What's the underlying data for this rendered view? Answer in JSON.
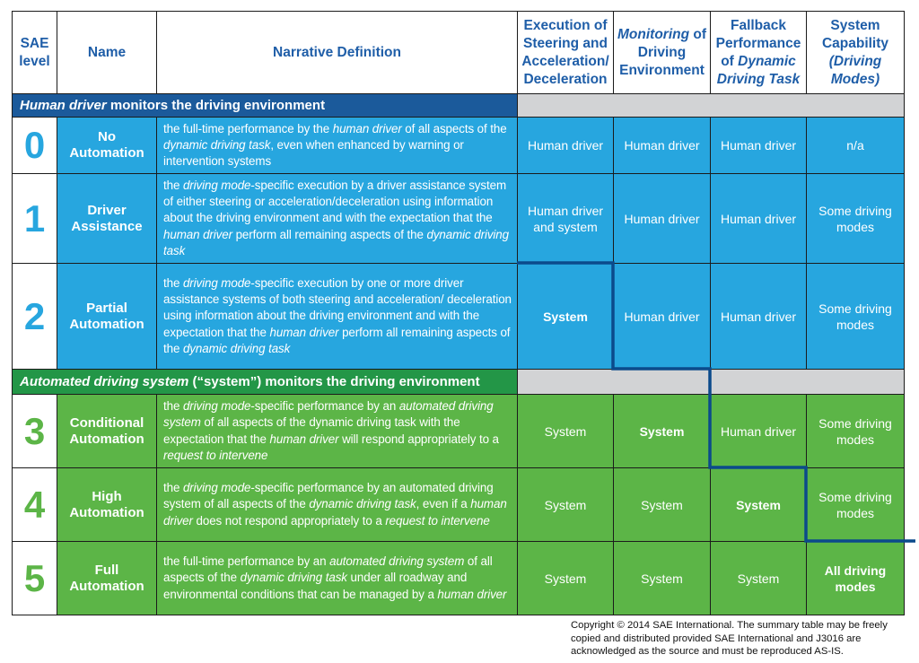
{
  "header": {
    "columns": [
      [
        {
          "text": "SAE level"
        }
      ],
      [
        {
          "text": "Name"
        }
      ],
      [
        {
          "text": "Narrative Definition"
        }
      ],
      [
        {
          "text": "Execution of Steering and Acceleration/ Deceleration"
        }
      ],
      [
        {
          "text": "Monitoring",
          "italic": true
        },
        {
          "text": " of Driving Environment"
        }
      ],
      [
        {
          "text": "Fallback Performance of "
        },
        {
          "text": "Dynamic Driving Task",
          "italic": true
        }
      ],
      [
        {
          "text": "System Capability "
        },
        {
          "text": "(Driving Modes)",
          "italic": true
        }
      ]
    ]
  },
  "sections": [
    {
      "color": "#27a6df",
      "dark": "#1b5a9b",
      "title": [
        {
          "text": "Human driver",
          "italic": true
        },
        {
          "text": " monitors the driving environment"
        }
      ],
      "rows": [
        {
          "level": "0",
          "name": "No Automation",
          "narrative": [
            {
              "text": "the full-time performance by the "
            },
            {
              "text": "human driver",
              "italic": true
            },
            {
              "text": " of all aspects of the "
            },
            {
              "text": "dynamic driving task",
              "italic": true
            },
            {
              "text": ", even when enhanced by warning or intervention systems"
            }
          ],
          "cells": [
            {
              "text": "Human driver"
            },
            {
              "text": "Human driver"
            },
            {
              "text": "Human driver"
            },
            {
              "text": "n/a"
            }
          ]
        },
        {
          "level": "1",
          "name": "Driver Assistance",
          "narrative": [
            {
              "text": "the "
            },
            {
              "text": "driving mode",
              "italic": true
            },
            {
              "text": "-specific execution by a driver assistance system of either steering or acceleration/deceleration using information about the driving environment and with the expectation that the "
            },
            {
              "text": "human driver",
              "italic": true
            },
            {
              "text": " perform all remaining aspects of the "
            },
            {
              "text": "dynamic driving task",
              "italic": true
            }
          ],
          "cells": [
            {
              "text": "Human driver and system"
            },
            {
              "text": "Human driver"
            },
            {
              "text": "Human driver"
            },
            {
              "text": "Some driving modes"
            }
          ]
        },
        {
          "level": "2",
          "name": "Partial Automation",
          "narrative": [
            {
              "text": "the "
            },
            {
              "text": "driving mode",
              "italic": true
            },
            {
              "text": "-specific execution by one or more driver assistance systems of both steering and acceleration/ deceleration using information about the driving environment and with the expectation that the "
            },
            {
              "text": "human driver",
              "italic": true
            },
            {
              "text": " perform all remaining aspects of the "
            },
            {
              "text": "dynamic driving task",
              "italic": true
            }
          ],
          "cells": [
            {
              "text": "System",
              "bold": true
            },
            {
              "text": "Human driver"
            },
            {
              "text": "Human driver"
            },
            {
              "text": "Some driving modes"
            }
          ]
        }
      ]
    },
    {
      "color": "#5cb547",
      "dark": "#239647",
      "title": [
        {
          "text": "Automated driving system",
          "italic": true
        },
        {
          "text": " (“system”) monitors the driving environment"
        }
      ],
      "rows": [
        {
          "level": "3",
          "name": "Conditional Automation",
          "narrative": [
            {
              "text": "the "
            },
            {
              "text": "driving mode",
              "italic": true
            },
            {
              "text": "-specific performance by an "
            },
            {
              "text": "automated driving system",
              "italic": true
            },
            {
              "text": " of all aspects of the dynamic driving task with the expectation that the "
            },
            {
              "text": "human driver",
              "italic": true
            },
            {
              "text": " will respond appropriately to a "
            },
            {
              "text": "request to intervene",
              "italic": true
            }
          ],
          "cells": [
            {
              "text": "System"
            },
            {
              "text": "System",
              "bold": true
            },
            {
              "text": "Human driver"
            },
            {
              "text": "Some driving modes"
            }
          ]
        },
        {
          "level": "4",
          "name": "High Automation",
          "narrative": [
            {
              "text": "the "
            },
            {
              "text": "driving mode",
              "italic": true
            },
            {
              "text": "-specific performance by an automated driving system of all aspects of the "
            },
            {
              "text": "dynamic driving task",
              "italic": true
            },
            {
              "text": ", even if a "
            },
            {
              "text": "human driver",
              "italic": true
            },
            {
              "text": " does not respond appropriately to a "
            },
            {
              "text": "request to intervene",
              "italic": true
            }
          ],
          "cells": [
            {
              "text": "System"
            },
            {
              "text": "System"
            },
            {
              "text": "System",
              "bold": true
            },
            {
              "text": "Some driving modes"
            }
          ]
        },
        {
          "level": "5",
          "name": "Full Automation",
          "narrative": [
            {
              "text": "the full-time performance by an "
            },
            {
              "text": "automated driving system",
              "italic": true
            },
            {
              "text": " of all aspects of the "
            },
            {
              "text": "dynamic driving task",
              "italic": true
            },
            {
              "text": " under all roadway and environmental conditions that can be managed by a "
            },
            {
              "text": "human driver",
              "italic": true
            }
          ],
          "cells": [
            {
              "text": "System"
            },
            {
              "text": "System"
            },
            {
              "text": "System"
            },
            {
              "text": "All driving modes",
              "bold": true
            }
          ]
        }
      ]
    }
  ],
  "footer": {
    "copyright": "Copyright © 2014 SAE International.  The summary table may be freely copied and distributed provided SAE International and J3016 are acknowledged as the source and must be reproduced AS-IS."
  }
}
